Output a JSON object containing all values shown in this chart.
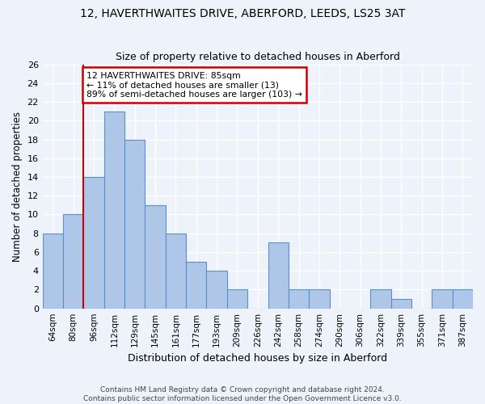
{
  "title": "12, HAVERTHWAITES DRIVE, ABERFORD, LEEDS, LS25 3AT",
  "subtitle": "Size of property relative to detached houses in Aberford",
  "xlabel": "Distribution of detached houses by size in Aberford",
  "ylabel": "Number of detached properties",
  "categories": [
    "64sqm",
    "80sqm",
    "96sqm",
    "112sqm",
    "129sqm",
    "145sqm",
    "161sqm",
    "177sqm",
    "193sqm",
    "209sqm",
    "226sqm",
    "242sqm",
    "258sqm",
    "274sqm",
    "290sqm",
    "306sqm",
    "322sqm",
    "339sqm",
    "355sqm",
    "371sqm",
    "387sqm"
  ],
  "values": [
    8,
    10,
    14,
    21,
    18,
    11,
    8,
    5,
    4,
    2,
    0,
    7,
    2,
    2,
    0,
    0,
    2,
    1,
    0,
    2,
    2
  ],
  "bar_color": "#aec6e8",
  "bar_edge_color": "#5b8fc9",
  "line_color": "#cc0000",
  "annotation_text": "12 HAVERTHWAITES DRIVE: 85sqm\n← 11% of detached houses are smaller (13)\n89% of semi-detached houses are larger (103) →",
  "annotation_box_color": "#ffffff",
  "annotation_box_edge_color": "#cc0000",
  "ylim": [
    0,
    26
  ],
  "yticks": [
    0,
    2,
    4,
    6,
    8,
    10,
    12,
    14,
    16,
    18,
    20,
    22,
    24,
    26
  ],
  "background_color": "#eef2fb",
  "grid_color": "#ffffff",
  "footer_line1": "Contains HM Land Registry data © Crown copyright and database right 2024.",
  "footer_line2": "Contains public sector information licensed under the Open Government Licence v3.0."
}
